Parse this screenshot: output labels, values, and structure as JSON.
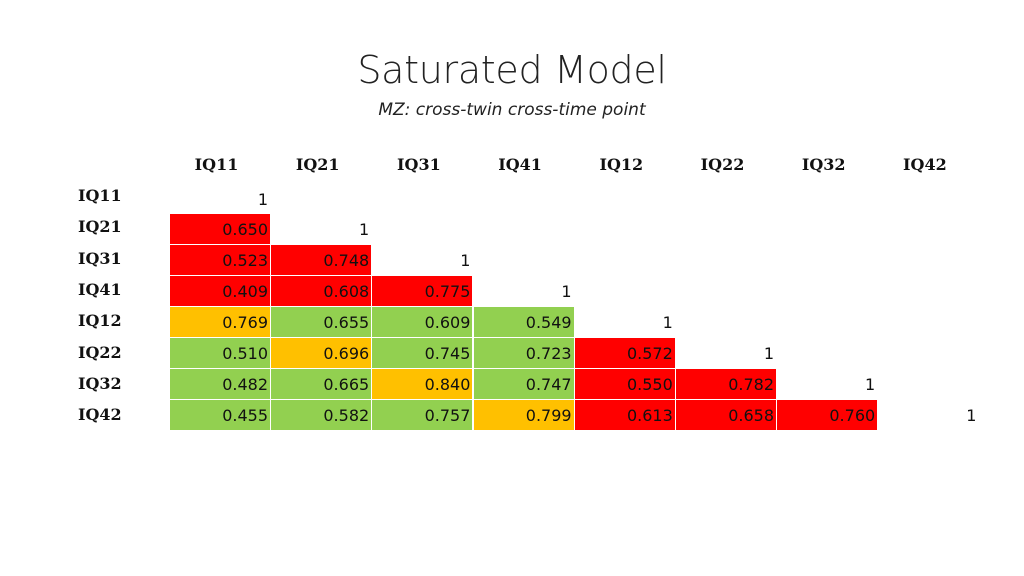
{
  "title": "Saturated Model",
  "subtitle": "MZ: cross-twin cross-time point",
  "colors": {
    "red": "#ff0000",
    "orange": "#ffc000",
    "green": "#92d050"
  },
  "columns": [
    "IQ11",
    "IQ21",
    "IQ31",
    "IQ41",
    "IQ12",
    "IQ22",
    "IQ32",
    "IQ42"
  ],
  "rows": [
    {
      "label": "IQ11",
      "cells": [
        {
          "v": "1",
          "c": "diag"
        }
      ]
    },
    {
      "label": "IQ21",
      "cells": [
        {
          "v": "0.650",
          "c": "red"
        },
        {
          "v": "1",
          "c": "diag"
        }
      ]
    },
    {
      "label": "IQ31",
      "cells": [
        {
          "v": "0.523",
          "c": "red"
        },
        {
          "v": "0.748",
          "c": "red"
        },
        {
          "v": "1",
          "c": "diag"
        }
      ]
    },
    {
      "label": "IQ41",
      "cells": [
        {
          "v": "0.409",
          "c": "red"
        },
        {
          "v": "0.608",
          "c": "red"
        },
        {
          "v": "0.775",
          "c": "red"
        },
        {
          "v": "1",
          "c": "diag"
        }
      ]
    },
    {
      "label": "IQ12",
      "cells": [
        {
          "v": "0.769",
          "c": "orange"
        },
        {
          "v": "0.655",
          "c": "green"
        },
        {
          "v": "0.609",
          "c": "green"
        },
        {
          "v": "0.549",
          "c": "green"
        },
        {
          "v": "1",
          "c": "diag"
        }
      ]
    },
    {
      "label": "IQ22",
      "cells": [
        {
          "v": "0.510",
          "c": "green"
        },
        {
          "v": "0.696",
          "c": "orange"
        },
        {
          "v": "0.745",
          "c": "green"
        },
        {
          "v": "0.723",
          "c": "green"
        },
        {
          "v": "0.572",
          "c": "red"
        },
        {
          "v": "1",
          "c": "diag"
        }
      ]
    },
    {
      "label": "IQ32",
      "cells": [
        {
          "v": "0.482",
          "c": "green"
        },
        {
          "v": "0.665",
          "c": "green"
        },
        {
          "v": "0.840",
          "c": "orange"
        },
        {
          "v": "0.747",
          "c": "green"
        },
        {
          "v": "0.550",
          "c": "red"
        },
        {
          "v": "0.782",
          "c": "red"
        },
        {
          "v": "1",
          "c": "diag"
        }
      ]
    },
    {
      "label": "IQ42",
      "cells": [
        {
          "v": "0.455",
          "c": "green"
        },
        {
          "v": "0.582",
          "c": "green"
        },
        {
          "v": "0.757",
          "c": "green"
        },
        {
          "v": "0.799",
          "c": "orange"
        },
        {
          "v": "0.613",
          "c": "red"
        },
        {
          "v": "0.658",
          "c": "red"
        },
        {
          "v": "0.760",
          "c": "red"
        },
        {
          "v": "1",
          "c": "diag"
        }
      ]
    }
  ]
}
